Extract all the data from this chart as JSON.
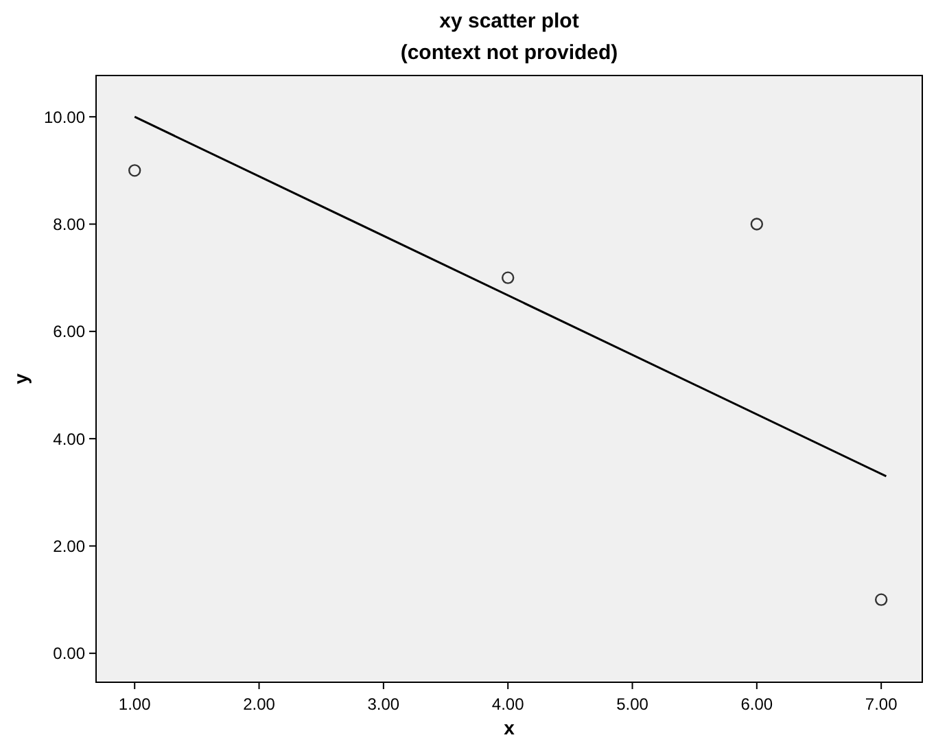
{
  "chart_data": {
    "type": "scatter",
    "title": "xy scatter plot",
    "subtitle": "(context not provided)",
    "xlabel": "x",
    "ylabel": "y",
    "xlim": [
      0.69,
      7.33
    ],
    "ylim": [
      -0.54,
      10.77
    ],
    "xticks": [
      {
        "value": 1,
        "label": "1.00"
      },
      {
        "value": 2,
        "label": "2.00"
      },
      {
        "value": 3,
        "label": "3.00"
      },
      {
        "value": 4,
        "label": "4.00"
      },
      {
        "value": 5,
        "label": "5.00"
      },
      {
        "value": 6,
        "label": "6.00"
      },
      {
        "value": 7,
        "label": "7.00"
      }
    ],
    "yticks": [
      {
        "value": 0,
        "label": "0.00"
      },
      {
        "value": 2,
        "label": "2.00"
      },
      {
        "value": 4,
        "label": "4.00"
      },
      {
        "value": 6,
        "label": "6.00"
      },
      {
        "value": 8,
        "label": "8.00"
      },
      {
        "value": 10,
        "label": "10.00"
      }
    ],
    "series": [
      {
        "color": "#333333",
        "x": [
          1,
          4,
          6,
          7
        ],
        "values": [
          9,
          7,
          8,
          1
        ],
        "marker": "circle"
      },
      {
        "type": "line",
        "color": "#000000",
        "x": [
          1,
          7.04
        ],
        "values": [
          10,
          3.3
        ],
        "line_style": "solid"
      }
    ],
    "grid": false
  }
}
